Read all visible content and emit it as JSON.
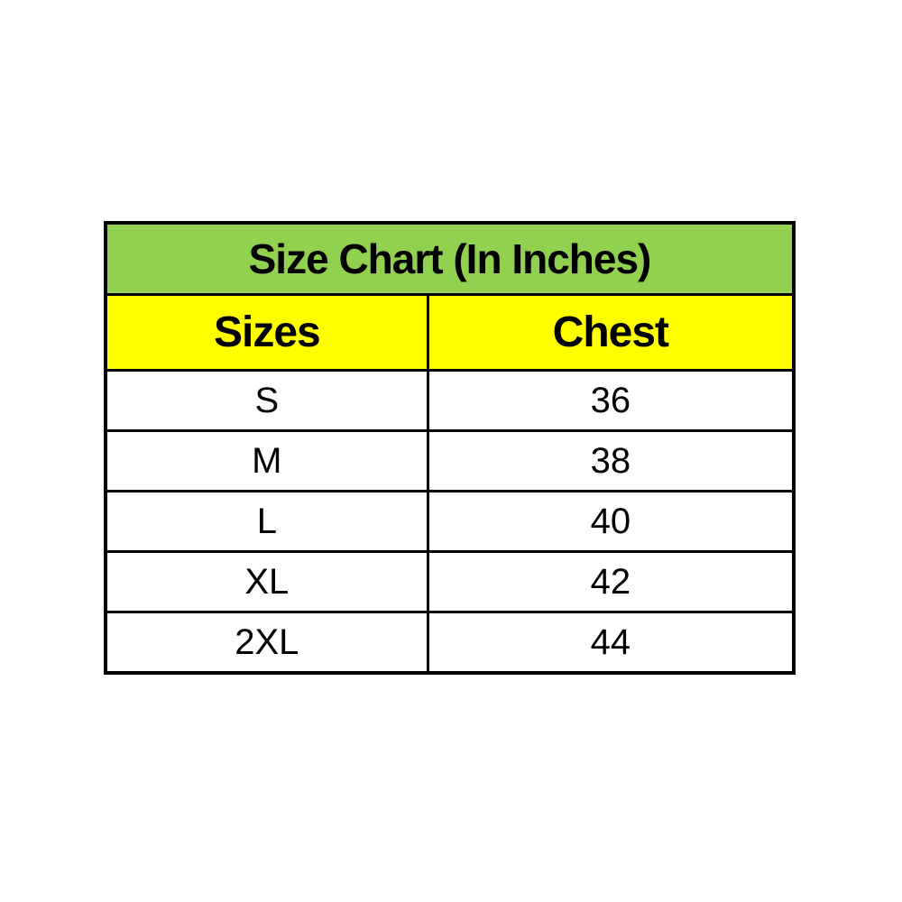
{
  "chart": {
    "title": "Size Chart (In Inches)",
    "columns": [
      "Sizes",
      "Chest"
    ],
    "rows": [
      {
        "size": "S",
        "chest": "36"
      },
      {
        "size": "M",
        "chest": "38"
      },
      {
        "size": "L",
        "chest": "40"
      },
      {
        "size": "XL",
        "chest": "42"
      },
      {
        "size": "2XL",
        "chest": "44"
      }
    ]
  },
  "chart_data": {
    "type": "table",
    "title": "Size Chart (In Inches)",
    "columns": [
      "Sizes",
      "Chest"
    ],
    "rows": [
      [
        "S",
        "36"
      ],
      [
        "M",
        "38"
      ],
      [
        "L",
        "40"
      ],
      [
        "XL",
        "42"
      ],
      [
        "2XL",
        "44"
      ]
    ],
    "layout_hints": {
      "title_row_bg": "#92D050",
      "header_row_bg": "#FFFF00",
      "data_row_bg": "#FFFFFF",
      "border_color": "#000000",
      "units": "inches"
    }
  },
  "colors": {
    "title_bg": "#92D050",
    "header_bg": "#FFFF00",
    "border": "#000000",
    "text": "#000000",
    "page_bg": "#FFFFFF"
  }
}
